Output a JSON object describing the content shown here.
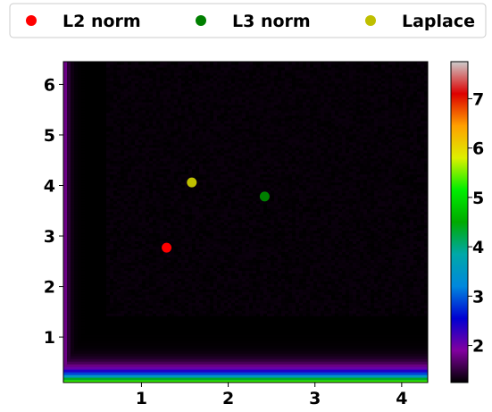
{
  "chart_data": {
    "type": "heatmap",
    "title": "",
    "xlabel": "",
    "ylabel": "",
    "xlim": [
      0.1,
      4.3
    ],
    "ylim": [
      0.1,
      6.45
    ],
    "x_ticks": [
      1,
      2,
      3,
      4
    ],
    "y_ticks": [
      1,
      2,
      3,
      4,
      5,
      6
    ],
    "colorbar": {
      "range": [
        1.25,
        7.75
      ],
      "ticks": [
        2,
        3,
        4,
        5,
        6,
        7
      ],
      "colormap": "nipy_spectral",
      "colors": {
        "0.00": "#000000",
        "0.10": "#8200a0",
        "0.20": "#0000d2",
        "0.30": "#0088dd",
        "0.40": "#00a8a8",
        "0.50": "#00aa00",
        "0.60": "#00ee00",
        "0.70": "#ddf000",
        "0.80": "#ffa000",
        "0.90": "#dd0000",
        "1.00": "#cccccc"
      }
    },
    "field_note": "",
    "series": [
      {
        "name": "L2 norm",
        "type": "scatter",
        "color": "#ff0000",
        "x": [
          1.29
        ],
        "y": [
          2.77
        ]
      },
      {
        "name": "L3 norm",
        "type": "scatter",
        "color": "#007f00",
        "x": [
          2.42
        ],
        "y": [
          3.78
        ]
      },
      {
        "name": "Laplace",
        "type": "scatter",
        "color": "#bfbf00",
        "x": [
          1.58
        ],
        "y": [
          4.06
        ]
      }
    ],
    "legend_location": "top, outside plot, horizontal"
  }
}
